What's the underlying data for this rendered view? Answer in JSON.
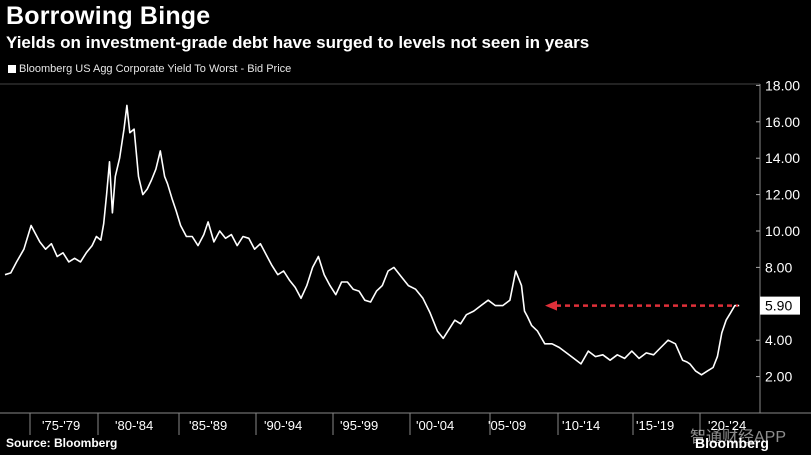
{
  "header": {
    "title": "Borrowing Binge",
    "subtitle": "Yields on investment-grade debt have surged to levels not seen in years"
  },
  "footer": {
    "source": "Source: Bloomberg",
    "brand": "Bloomberg",
    "watermark": "智通财经APP"
  },
  "chart_data": {
    "type": "line",
    "title": "Borrowing Binge",
    "subtitle": "Yields on investment-grade debt have surged to levels not seen in years",
    "legend": {
      "position": "top-left",
      "entries": [
        "Bloomberg US Agg Corporate Yield To Worst - Bid Price"
      ]
    },
    "grid": false,
    "x_tick_labels": [
      "'75-'79",
      "'80-'84",
      "'85-'89",
      "'90-'94",
      "'95-'99",
      "'00-'04",
      "'05-'09",
      "'10-'14",
      "'15-'19",
      "'20-'24"
    ],
    "xlim": [
      1973,
      2024
    ],
    "ylim": [
      0,
      18.6
    ],
    "y_ticks": [
      "18.00",
      "16.00",
      "14.00",
      "12.00",
      "10.00",
      "8.00",
      "4.00",
      "2.00"
    ],
    "y_ticks_values": [
      18,
      16,
      14,
      12,
      10,
      8,
      4,
      2
    ],
    "callout": {
      "label": "5.90",
      "value": 5.9,
      "arrow_color": "#e0303a"
    },
    "series": [
      {
        "name": "Bloomberg US Agg Corporate Yield To Worst - Bid Price",
        "color": "#ffffff",
        "x": [
          1973.0,
          1973.4,
          1973.8,
          1974.3,
          1974.8,
          1975.0,
          1975.4,
          1975.8,
          1976.2,
          1976.6,
          1977.0,
          1977.4,
          1977.8,
          1978.2,
          1978.6,
          1979.0,
          1979.3,
          1979.6,
          1979.8,
          1980.0,
          1980.2,
          1980.4,
          1980.6,
          1980.9,
          1981.2,
          1981.4,
          1981.6,
          1981.9,
          1982.2,
          1982.5,
          1982.8,
          1983.1,
          1983.4,
          1983.7,
          1984.0,
          1984.2,
          1984.5,
          1984.8,
          1985.1,
          1985.5,
          1985.9,
          1986.3,
          1986.7,
          1987.0,
          1987.4,
          1987.8,
          1988.2,
          1988.6,
          1989.0,
          1989.4,
          1989.8,
          1990.2,
          1990.6,
          1991.0,
          1991.4,
          1991.8,
          1992.2,
          1992.6,
          1993.0,
          1993.4,
          1993.8,
          1994.2,
          1994.6,
          1995.0,
          1995.4,
          1995.8,
          1996.2,
          1996.6,
          1997.0,
          1997.4,
          1997.8,
          1998.2,
          1998.6,
          1999.0,
          1999.4,
          1999.8,
          2000.3,
          2000.8,
          2001.3,
          2001.8,
          2002.3,
          2002.8,
          2003.2,
          2003.6,
          2004.0,
          2004.4,
          2004.8,
          2005.3,
          2005.8,
          2006.3,
          2006.8,
          2007.3,
          2007.8,
          2008.2,
          2008.6,
          2008.8,
          2009.0,
          2009.3,
          2009.7,
          2010.2,
          2010.7,
          2011.2,
          2011.7,
          2012.2,
          2012.7,
          2013.2,
          2013.7,
          2014.2,
          2014.7,
          2015.2,
          2015.7,
          2016.2,
          2016.7,
          2017.2,
          2017.7,
          2018.2,
          2018.7,
          2019.2,
          2019.7,
          2020.0,
          2020.2,
          2020.6,
          2021.0,
          2021.4,
          2021.8,
          2022.1,
          2022.4,
          2022.7,
          2023.0,
          2023.3,
          2023.6
        ],
        "values": [
          7.6,
          7.7,
          8.3,
          9.0,
          10.3,
          10.0,
          9.4,
          9.0,
          9.3,
          8.6,
          8.8,
          8.3,
          8.5,
          8.3,
          8.8,
          9.2,
          9.7,
          9.5,
          10.4,
          12.0,
          13.8,
          11.0,
          13.0,
          14.0,
          15.6,
          16.9,
          15.4,
          15.6,
          13.0,
          12.0,
          12.3,
          12.8,
          13.4,
          14.4,
          13.0,
          12.6,
          11.8,
          11.1,
          10.3,
          9.7,
          9.7,
          9.2,
          9.8,
          10.5,
          9.4,
          10.0,
          9.6,
          9.8,
          9.2,
          9.7,
          9.6,
          9.0,
          9.3,
          8.7,
          8.1,
          7.6,
          7.8,
          7.3,
          6.9,
          6.3,
          7.0,
          8.0,
          8.6,
          7.6,
          7.0,
          6.5,
          7.2,
          7.2,
          6.8,
          6.7,
          6.2,
          6.1,
          6.7,
          7.0,
          7.8,
          8.0,
          7.5,
          7.0,
          6.8,
          6.3,
          5.5,
          4.5,
          4.1,
          4.6,
          5.1,
          4.9,
          5.4,
          5.6,
          5.9,
          6.2,
          5.9,
          5.9,
          6.2,
          7.8,
          7.0,
          5.6,
          5.3,
          4.8,
          4.5,
          3.8,
          3.8,
          3.6,
          3.3,
          3.0,
          2.7,
          3.4,
          3.1,
          3.2,
          2.9,
          3.2,
          3.0,
          3.4,
          3.0,
          3.3,
          3.2,
          3.6,
          4.0,
          3.8,
          2.9,
          2.8,
          2.7,
          2.3,
          2.1,
          2.3,
          2.5,
          3.1,
          4.4,
          5.1,
          5.5,
          5.9,
          5.9
        ]
      }
    ]
  }
}
